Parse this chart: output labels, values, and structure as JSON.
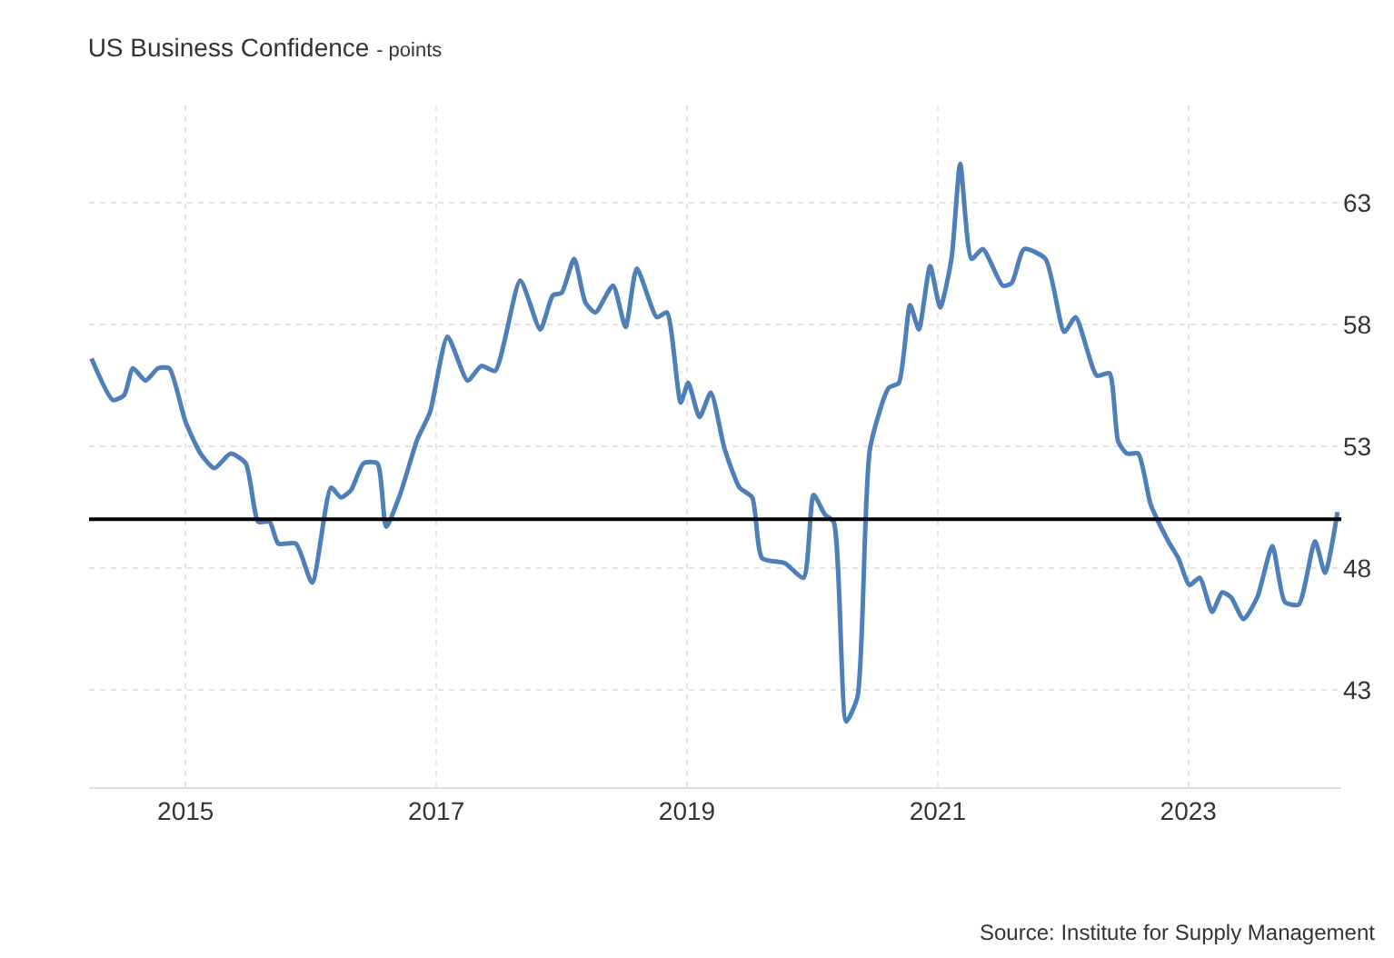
{
  "chart_data": {
    "type": "line",
    "title": "US Business Confidence",
    "subtitle": "- points",
    "x": [
      2014.25,
      2014.42,
      2014.51,
      2014.58,
      2014.68,
      2014.78,
      2014.87,
      2015.0,
      2015.12,
      2015.23,
      2015.36,
      2015.48,
      2015.58,
      2015.67,
      2015.74,
      2015.88,
      2016.01,
      2016.16,
      2016.24,
      2016.32,
      2016.42,
      2016.53,
      2016.6,
      2016.71,
      2016.85,
      2016.95,
      2017.09,
      2017.25,
      2017.36,
      2017.47,
      2017.67,
      2017.83,
      2017.93,
      2018.0,
      2018.1,
      2018.19,
      2018.27,
      2018.41,
      2018.51,
      2018.6,
      2018.76,
      2018.84,
      2018.95,
      2019.01,
      2019.1,
      2019.19,
      2019.3,
      2019.42,
      2019.52,
      2019.6,
      2019.78,
      2019.93,
      2020.01,
      2020.1,
      2020.17,
      2020.27,
      2020.36,
      2020.46,
      2020.61,
      2020.69,
      2020.78,
      2020.85,
      2020.94,
      2021.02,
      2021.11,
      2021.18,
      2021.27,
      2021.36,
      2021.52,
      2021.59,
      2021.69,
      2021.86,
      2022.01,
      2022.1,
      2022.27,
      2022.37,
      2022.44,
      2022.51,
      2022.6,
      2022.7,
      2022.84,
      2022.92,
      2023.01,
      2023.09,
      2023.19,
      2023.27,
      2023.34,
      2023.44,
      2023.55,
      2023.67,
      2023.77,
      2023.88,
      2024.01,
      2024.09,
      2024.19
    ],
    "series": [
      {
        "color": "#4f7fb8",
        "values": [
          56.6,
          54.9,
          55.1,
          56.2,
          55.7,
          56.2,
          56.2,
          54.0,
          52.7,
          52.1,
          52.7,
          52.3,
          49.9,
          49.9,
          49.0,
          49.0,
          47.4,
          51.3,
          50.9,
          51.2,
          52.3,
          52.3,
          49.7,
          51.0,
          53.3,
          54.4,
          57.5,
          55.7,
          56.3,
          56.1,
          59.8,
          57.8,
          59.2,
          59.3,
          60.7,
          58.9,
          58.5,
          59.6,
          57.9,
          60.3,
          58.3,
          58.5,
          54.8,
          55.6,
          54.2,
          55.2,
          52.9,
          51.3,
          50.9,
          48.4,
          48.2,
          47.6,
          51.0,
          50.2,
          49.9,
          41.7,
          42.7,
          52.9,
          55.4,
          55.6,
          58.8,
          57.8,
          60.4,
          58.7,
          60.7,
          64.6,
          60.7,
          61.1,
          59.6,
          59.7,
          61.1,
          60.7,
          57.7,
          58.3,
          55.9,
          56.0,
          53.2,
          52.7,
          52.7,
          50.6,
          49.1,
          48.4,
          47.3,
          47.6,
          46.2,
          47.0,
          46.8,
          45.9,
          46.8,
          48.9,
          46.6,
          46.5,
          49.1,
          47.8,
          50.3
        ]
      }
    ],
    "xlim": [
      2014.23,
      2024.22
    ],
    "xticks": [
      2015,
      2017,
      2019,
      2021,
      2023
    ],
    "ylim": [
      39,
      67
    ],
    "yticks": [
      43,
      48,
      53,
      58,
      63
    ],
    "ref_lines": [
      {
        "axis": "y",
        "value": 50,
        "color": "#000000"
      }
    ],
    "grid": true,
    "marker": "none",
    "line_style": "solid",
    "annotations": [
      "Source: Institute for Supply Management"
    ]
  }
}
